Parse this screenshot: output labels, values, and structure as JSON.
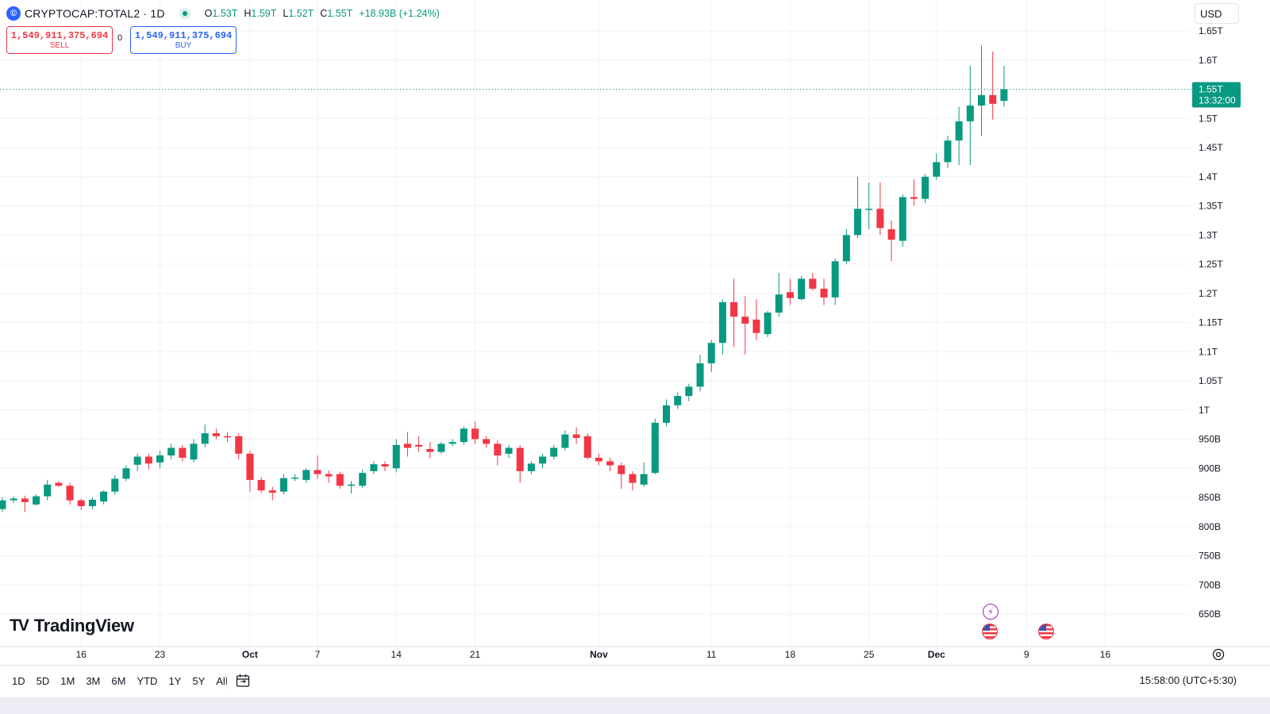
{
  "header": {
    "symbol": "CRYPTOCAP:TOTAL2 · 1D",
    "ohlc": {
      "o_label": "O",
      "o": "1.53T",
      "h_label": "H",
      "h": "1.59T",
      "l_label": "L",
      "l": "1.52T",
      "c_label": "C",
      "c": "1.55T",
      "change": "+18.93B (+1.24%)"
    }
  },
  "trade": {
    "sell_price": "1,549,911,375,694",
    "sell_label": "SELL",
    "spread": "0",
    "buy_price": "1,549,911,375,694",
    "buy_label": "BUY"
  },
  "currency": "USD",
  "brand": "TradingView",
  "last_price_label": {
    "price": "1.55T",
    "countdown": "13:32:00"
  },
  "bottom_bar": {
    "ranges": [
      "1D",
      "5D",
      "1M",
      "3M",
      "6M",
      "YTD",
      "1Y",
      "5Y",
      "All"
    ],
    "clock": "15:58:00 (UTC+5:30)"
  },
  "colors": {
    "up": "#089981",
    "down": "#f23645",
    "grid": "#f0f3fa",
    "text": "#131722"
  },
  "chart_data": {
    "type": "candlestick",
    "y_unit": "USD",
    "ylim": [
      600,
      1680
    ],
    "y_ticks": [
      {
        "v": 650,
        "label": "650B"
      },
      {
        "v": 700,
        "label": "700B"
      },
      {
        "v": 750,
        "label": "750B"
      },
      {
        "v": 800,
        "label": "800B"
      },
      {
        "v": 850,
        "label": "850B"
      },
      {
        "v": 900,
        "label": "900B"
      },
      {
        "v": 950,
        "label": "950B"
      },
      {
        "v": 1000,
        "label": "1T"
      },
      {
        "v": 1050,
        "label": "1.05T"
      },
      {
        "v": 1100,
        "label": "1.1T"
      },
      {
        "v": 1150,
        "label": "1.15T"
      },
      {
        "v": 1200,
        "label": "1.2T"
      },
      {
        "v": 1250,
        "label": "1.25T"
      },
      {
        "v": 1300,
        "label": "1.3T"
      },
      {
        "v": 1350,
        "label": "1.35T"
      },
      {
        "v": 1400,
        "label": "1.4T"
      },
      {
        "v": 1450,
        "label": "1.45T"
      },
      {
        "v": 1500,
        "label": "1.5T"
      },
      {
        "v": 1550,
        "label": "1.55T"
      },
      {
        "v": 1600,
        "label": "1.6T"
      },
      {
        "v": 1650,
        "label": "1.65T"
      }
    ],
    "x_ticks": [
      {
        "date": "2024-09-16",
        "label": "16",
        "bold": false
      },
      {
        "date": "2024-09-23",
        "label": "23",
        "bold": false
      },
      {
        "date": "2024-10-01",
        "label": "Oct",
        "bold": true
      },
      {
        "date": "2024-10-07",
        "label": "7",
        "bold": false
      },
      {
        "date": "2024-10-14",
        "label": "14",
        "bold": false
      },
      {
        "date": "2024-10-21",
        "label": "21",
        "bold": false
      },
      {
        "date": "2024-11-01",
        "label": "Nov",
        "bold": true
      },
      {
        "date": "2024-11-11",
        "label": "11",
        "bold": false
      },
      {
        "date": "2024-11-18",
        "label": "18",
        "bold": false
      },
      {
        "date": "2024-11-25",
        "label": "25",
        "bold": false
      },
      {
        "date": "2024-12-01",
        "label": "Dec",
        "bold": true
      },
      {
        "date": "2024-12-09",
        "label": "9",
        "bold": false
      },
      {
        "date": "2024-12-16",
        "label": "16",
        "bold": false
      }
    ],
    "x_range": [
      "2024-09-09",
      "2024-12-19"
    ],
    "last_price": 1550,
    "candles": [
      {
        "d": "2024-09-09",
        "o": 830,
        "h": 850,
        "l": 825,
        "c": 845
      },
      {
        "d": "2024-09-10",
        "o": 845,
        "h": 852,
        "l": 840,
        "c": 848
      },
      {
        "d": "2024-09-11",
        "o": 848,
        "h": 853,
        "l": 825,
        "c": 842
      },
      {
        "d": "2024-09-12",
        "o": 838,
        "h": 855,
        "l": 836,
        "c": 852
      },
      {
        "d": "2024-09-13",
        "o": 852,
        "h": 880,
        "l": 845,
        "c": 872
      },
      {
        "d": "2024-09-14",
        "o": 875,
        "h": 878,
        "l": 868,
        "c": 870
      },
      {
        "d": "2024-09-15",
        "o": 870,
        "h": 875,
        "l": 838,
        "c": 845
      },
      {
        "d": "2024-09-16",
        "o": 845,
        "h": 848,
        "l": 828,
        "c": 835
      },
      {
        "d": "2024-09-17",
        "o": 835,
        "h": 850,
        "l": 830,
        "c": 846
      },
      {
        "d": "2024-09-18",
        "o": 843,
        "h": 862,
        "l": 838,
        "c": 860
      },
      {
        "d": "2024-09-19",
        "o": 860,
        "h": 888,
        "l": 855,
        "c": 882
      },
      {
        "d": "2024-09-20",
        "o": 882,
        "h": 905,
        "l": 878,
        "c": 900
      },
      {
        "d": "2024-09-21",
        "o": 906,
        "h": 925,
        "l": 895,
        "c": 920
      },
      {
        "d": "2024-09-22",
        "o": 920,
        "h": 925,
        "l": 898,
        "c": 908
      },
      {
        "d": "2024-09-23",
        "o": 910,
        "h": 930,
        "l": 900,
        "c": 922
      },
      {
        "d": "2024-09-24",
        "o": 922,
        "h": 942,
        "l": 915,
        "c": 935
      },
      {
        "d": "2024-09-25",
        "o": 935,
        "h": 940,
        "l": 912,
        "c": 918
      },
      {
        "d": "2024-09-26",
        "o": 915,
        "h": 950,
        "l": 910,
        "c": 942
      },
      {
        "d": "2024-09-27",
        "o": 942,
        "h": 975,
        "l": 936,
        "c": 960
      },
      {
        "d": "2024-09-28",
        "o": 960,
        "h": 968,
        "l": 950,
        "c": 955
      },
      {
        "d": "2024-09-29",
        "o": 955,
        "h": 962,
        "l": 945,
        "c": 953
      },
      {
        "d": "2024-09-30",
        "o": 955,
        "h": 960,
        "l": 915,
        "c": 925
      },
      {
        "d": "2024-10-01",
        "o": 925,
        "h": 930,
        "l": 860,
        "c": 880
      },
      {
        "d": "2024-10-02",
        "o": 880,
        "h": 885,
        "l": 857,
        "c": 862
      },
      {
        "d": "2024-10-03",
        "o": 862,
        "h": 868,
        "l": 845,
        "c": 858
      },
      {
        "d": "2024-10-04",
        "o": 860,
        "h": 890,
        "l": 855,
        "c": 883
      },
      {
        "d": "2024-10-05",
        "o": 882,
        "h": 890,
        "l": 878,
        "c": 884
      },
      {
        "d": "2024-10-06",
        "o": 880,
        "h": 900,
        "l": 875,
        "c": 897
      },
      {
        "d": "2024-10-07",
        "o": 897,
        "h": 922,
        "l": 882,
        "c": 890
      },
      {
        "d": "2024-10-08",
        "o": 890,
        "h": 896,
        "l": 875,
        "c": 886
      },
      {
        "d": "2024-10-09",
        "o": 890,
        "h": 894,
        "l": 865,
        "c": 870
      },
      {
        "d": "2024-10-10",
        "o": 870,
        "h": 878,
        "l": 857,
        "c": 872
      },
      {
        "d": "2024-10-11",
        "o": 870,
        "h": 898,
        "l": 866,
        "c": 892
      },
      {
        "d": "2024-10-12",
        "o": 895,
        "h": 912,
        "l": 890,
        "c": 907
      },
      {
        "d": "2024-10-13",
        "o": 907,
        "h": 912,
        "l": 895,
        "c": 903
      },
      {
        "d": "2024-10-14",
        "o": 900,
        "h": 950,
        "l": 893,
        "c": 940
      },
      {
        "d": "2024-10-15",
        "o": 942,
        "h": 962,
        "l": 920,
        "c": 935
      },
      {
        "d": "2024-10-16",
        "o": 940,
        "h": 955,
        "l": 928,
        "c": 937
      },
      {
        "d": "2024-10-17",
        "o": 933,
        "h": 945,
        "l": 917,
        "c": 928
      },
      {
        "d": "2024-10-18",
        "o": 928,
        "h": 945,
        "l": 925,
        "c": 942
      },
      {
        "d": "2024-10-19",
        "o": 942,
        "h": 950,
        "l": 938,
        "c": 945
      },
      {
        "d": "2024-10-20",
        "o": 945,
        "h": 972,
        "l": 940,
        "c": 968
      },
      {
        "d": "2024-10-21",
        "o": 968,
        "h": 980,
        "l": 942,
        "c": 950
      },
      {
        "d": "2024-10-22",
        "o": 950,
        "h": 955,
        "l": 935,
        "c": 942
      },
      {
        "d": "2024-10-23",
        "o": 942,
        "h": 948,
        "l": 905,
        "c": 922
      },
      {
        "d": "2024-10-24",
        "o": 925,
        "h": 940,
        "l": 918,
        "c": 935
      },
      {
        "d": "2024-10-25",
        "o": 935,
        "h": 940,
        "l": 875,
        "c": 895
      },
      {
        "d": "2024-10-26",
        "o": 895,
        "h": 912,
        "l": 890,
        "c": 908
      },
      {
        "d": "2024-10-27",
        "o": 908,
        "h": 925,
        "l": 900,
        "c": 920
      },
      {
        "d": "2024-10-28",
        "o": 920,
        "h": 940,
        "l": 915,
        "c": 935
      },
      {
        "d": "2024-10-29",
        "o": 935,
        "h": 965,
        "l": 930,
        "c": 958
      },
      {
        "d": "2024-10-30",
        "o": 958,
        "h": 970,
        "l": 942,
        "c": 952
      },
      {
        "d": "2024-10-31",
        "o": 955,
        "h": 960,
        "l": 915,
        "c": 918
      },
      {
        "d": "2024-11-01",
        "o": 918,
        "h": 925,
        "l": 905,
        "c": 912
      },
      {
        "d": "2024-11-02",
        "o": 912,
        "h": 918,
        "l": 895,
        "c": 905
      },
      {
        "d": "2024-11-03",
        "o": 905,
        "h": 910,
        "l": 865,
        "c": 890
      },
      {
        "d": "2024-11-04",
        "o": 890,
        "h": 895,
        "l": 862,
        "c": 875
      },
      {
        "d": "2024-11-05",
        "o": 872,
        "h": 910,
        "l": 868,
        "c": 890
      },
      {
        "d": "2024-11-06",
        "o": 892,
        "h": 985,
        "l": 890,
        "c": 978
      },
      {
        "d": "2024-11-07",
        "o": 978,
        "h": 1018,
        "l": 972,
        "c": 1008
      },
      {
        "d": "2024-11-08",
        "o": 1008,
        "h": 1030,
        "l": 1002,
        "c": 1024
      },
      {
        "d": "2024-11-09",
        "o": 1024,
        "h": 1045,
        "l": 1015,
        "c": 1040
      },
      {
        "d": "2024-11-10",
        "o": 1040,
        "h": 1095,
        "l": 1032,
        "c": 1080
      },
      {
        "d": "2024-11-11",
        "o": 1080,
        "h": 1120,
        "l": 1065,
        "c": 1115
      },
      {
        "d": "2024-11-12",
        "o": 1115,
        "h": 1190,
        "l": 1095,
        "c": 1185
      },
      {
        "d": "2024-11-13",
        "o": 1185,
        "h": 1225,
        "l": 1108,
        "c": 1160
      },
      {
        "d": "2024-11-14",
        "o": 1160,
        "h": 1195,
        "l": 1095,
        "c": 1148
      },
      {
        "d": "2024-11-15",
        "o": 1155,
        "h": 1190,
        "l": 1120,
        "c": 1132
      },
      {
        "d": "2024-11-16",
        "o": 1130,
        "h": 1170,
        "l": 1125,
        "c": 1167
      },
      {
        "d": "2024-11-17",
        "o": 1167,
        "h": 1235,
        "l": 1160,
        "c": 1198
      },
      {
        "d": "2024-11-18",
        "o": 1202,
        "h": 1225,
        "l": 1180,
        "c": 1192
      },
      {
        "d": "2024-11-19",
        "o": 1190,
        "h": 1230,
        "l": 1188,
        "c": 1225
      },
      {
        "d": "2024-11-20",
        "o": 1225,
        "h": 1235,
        "l": 1205,
        "c": 1208
      },
      {
        "d": "2024-11-21",
        "o": 1208,
        "h": 1225,
        "l": 1180,
        "c": 1193
      },
      {
        "d": "2024-11-22",
        "o": 1193,
        "h": 1260,
        "l": 1180,
        "c": 1255
      },
      {
        "d": "2024-11-23",
        "o": 1255,
        "h": 1310,
        "l": 1250,
        "c": 1300
      },
      {
        "d": "2024-11-24",
        "o": 1300,
        "h": 1400,
        "l": 1295,
        "c": 1345
      },
      {
        "d": "2024-11-25",
        "o": 1345,
        "h": 1390,
        "l": 1310,
        "c": 1345
      },
      {
        "d": "2024-11-26",
        "o": 1345,
        "h": 1390,
        "l": 1300,
        "c": 1312
      },
      {
        "d": "2024-11-27",
        "o": 1310,
        "h": 1325,
        "l": 1255,
        "c": 1292
      },
      {
        "d": "2024-11-28",
        "o": 1290,
        "h": 1370,
        "l": 1280,
        "c": 1365
      },
      {
        "d": "2024-11-29",
        "o": 1365,
        "h": 1395,
        "l": 1350,
        "c": 1362
      },
      {
        "d": "2024-11-30",
        "o": 1362,
        "h": 1405,
        "l": 1355,
        "c": 1400
      },
      {
        "d": "2024-12-01",
        "o": 1400,
        "h": 1440,
        "l": 1395,
        "c": 1425
      },
      {
        "d": "2024-12-02",
        "o": 1425,
        "h": 1470,
        "l": 1415,
        "c": 1462
      },
      {
        "d": "2024-12-03",
        "o": 1462,
        "h": 1520,
        "l": 1420,
        "c": 1495
      },
      {
        "d": "2024-12-04",
        "o": 1495,
        "h": 1590,
        "l": 1420,
        "c": 1522
      },
      {
        "d": "2024-12-05",
        "o": 1522,
        "h": 1625,
        "l": 1470,
        "c": 1540
      },
      {
        "d": "2024-12-06",
        "o": 1540,
        "h": 1615,
        "l": 1498,
        "c": 1525
      },
      {
        "d": "2024-12-07",
        "o": 1530,
        "h": 1590,
        "l": 1520,
        "c": 1550
      }
    ]
  }
}
